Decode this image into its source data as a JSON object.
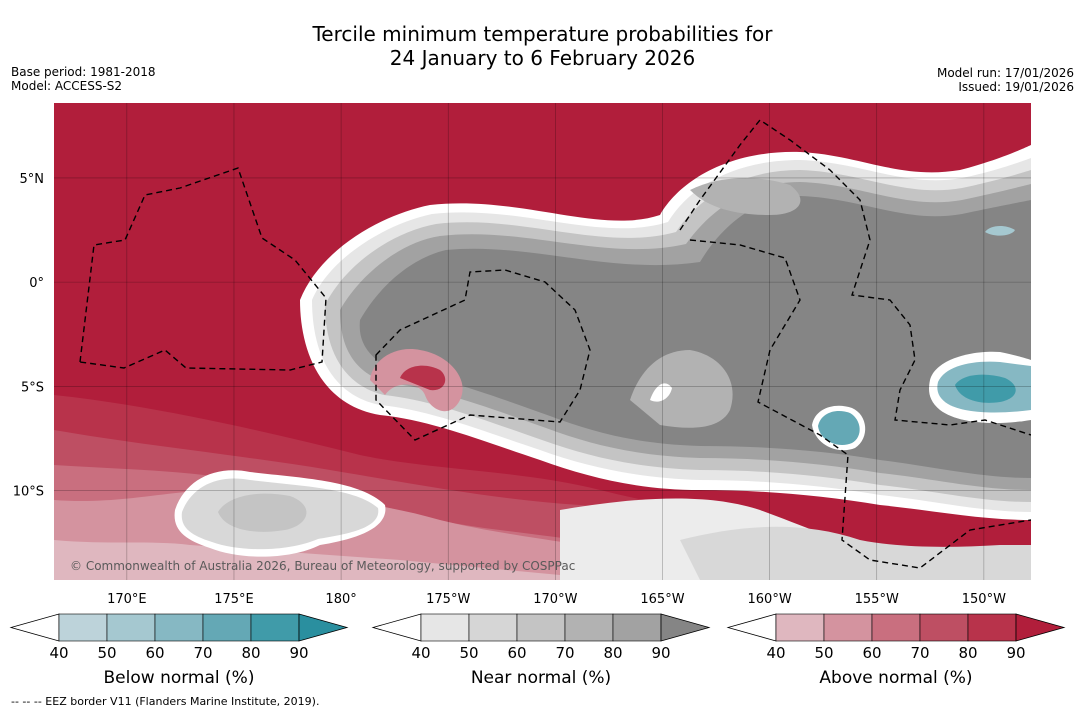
{
  "header": {
    "title_line1": "Tercile minimum temperature probabilities for",
    "title_line2": "24 January to 6 February 2026",
    "base_period": "Base period: 1981-2018",
    "model": "Model: ACCESS-S2",
    "model_run": "Model run: 17/01/2026",
    "issued": "Issued: 19/01/2026"
  },
  "map": {
    "copyright": "© Commonwealth of Australia 2026, Bureau of Meteorology, supported by COSPPac",
    "footnote": "-- -- -- EEZ border V11 (Flanders Marine Institute, 2019).",
    "lon_labels": [
      "170°E",
      "175°E",
      "180°",
      "175°W",
      "170°W",
      "165°W",
      "160°W",
      "155°W",
      "150°W"
    ],
    "lat_labels": [
      "5°N",
      "0°",
      "5°S",
      "10°S"
    ]
  },
  "chart_data": {
    "type": "heatmap",
    "title": "Tercile minimum temperature probabilities for 24 January to 6 February 2026",
    "region": {
      "lon_range": [
        166.6,
        212.2
      ],
      "lat_range": [
        -14.3,
        8.6
      ],
      "lon_ticks": [
        170,
        175,
        180,
        185,
        190,
        195,
        200,
        205,
        210
      ],
      "lat_ticks": [
        5,
        0,
        -5,
        -10
      ]
    },
    "legends": [
      {
        "name": "Below normal (%)",
        "levels": [
          40,
          50,
          60,
          70,
          80,
          90
        ],
        "colors": [
          "#ffffff",
          "#bdd3da",
          "#a5c8d0",
          "#86b8c3",
          "#64a8b5",
          "#409ba9",
          "#2a8f9f"
        ]
      },
      {
        "name": "Near normal (%)",
        "levels": [
          40,
          50,
          60,
          70,
          80,
          90
        ],
        "colors": [
          "#ffffff",
          "#e6e6e6",
          "#d6d6d6",
          "#c4c4c4",
          "#b2b2b2",
          "#a2a2a2",
          "#858585"
        ]
      },
      {
        "name": "Above normal (%)",
        "levels": [
          40,
          50,
          60,
          70,
          80,
          90
        ],
        "colors": [
          "#ffffff",
          "#dfb7bf",
          "#d4939f",
          "#c96f7f",
          "#be4f63",
          "#b8334b",
          "#b11e3b"
        ]
      }
    ],
    "regions": [
      {
        "category": "Above normal",
        "area": "North of ~2°N west and central, tropics 0–5°S west of 180°",
        "probability_pct": 90
      },
      {
        "category": "Near normal",
        "area": "Equatorial central Pacific 180°–150°W",
        "probability_pct": 90
      },
      {
        "category": "Below normal",
        "area": "Near 5°S, 150°W",
        "probability_pct": 80
      },
      {
        "category": "Below normal",
        "area": "Near 7°S, 155°W",
        "probability_pct": 70
      },
      {
        "category": "Near normal",
        "area": "10–13°S, 171–178°E",
        "probability_pct": 60
      },
      {
        "category": "Above normal",
        "area": "South of 10°S west of 176°E",
        "probability_pct": 60
      }
    ]
  }
}
